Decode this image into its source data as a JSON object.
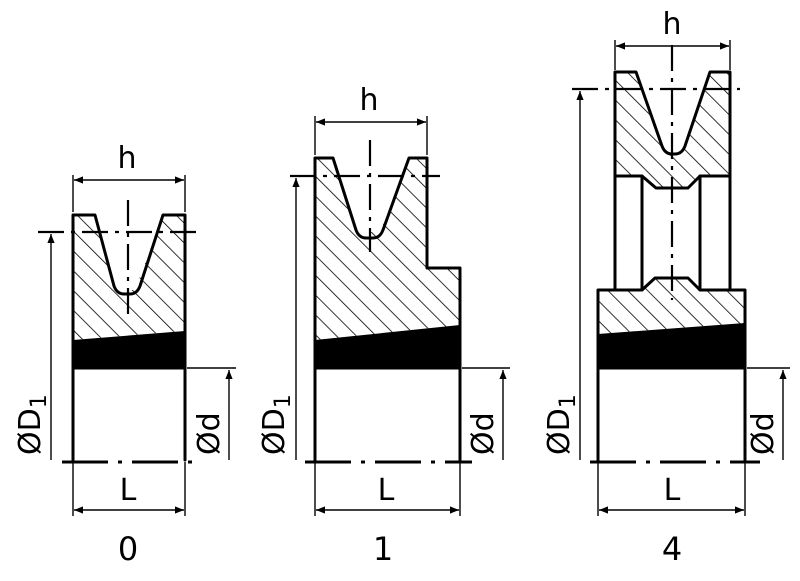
{
  "figures": [
    {
      "id": "0",
      "caption": "0",
      "label_h": "h",
      "label_L": "L",
      "label_d": "Ød",
      "label_D_main": "ØD",
      "label_D_sub": "1"
    },
    {
      "id": "1",
      "caption": "1",
      "label_h": "h",
      "label_L": "L",
      "label_d": "Ød",
      "label_D_main": "ØD",
      "label_D_sub": "1"
    },
    {
      "id": "4",
      "caption": "4",
      "label_h": "h",
      "label_L": "L",
      "label_d": "Ød",
      "label_D_main": "ØD",
      "label_D_sub": "1"
    }
  ]
}
